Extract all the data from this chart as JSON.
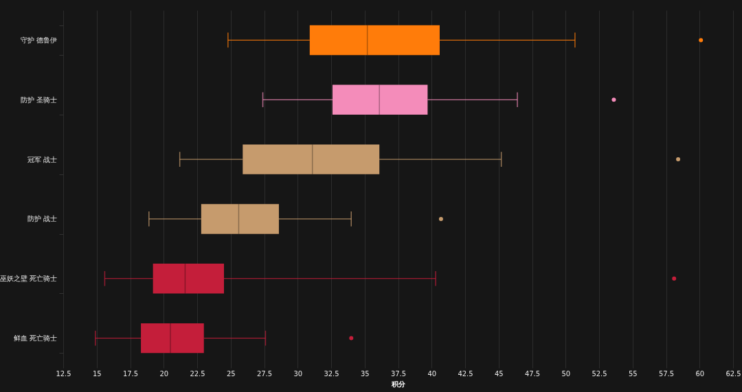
{
  "chart_data": {
    "type": "box",
    "orientation": "horizontal",
    "categories": [
      "守护 德鲁伊",
      "防护 圣骑士",
      "冠军 战士",
      "防护 战士",
      "巫妖之壁 死亡骑士",
      "鲜血 死亡骑士"
    ],
    "colors": [
      "#ff7c0a",
      "#f48cba",
      "#c69b6d",
      "#c69b6d",
      "#c41e3a",
      "#c41e3a"
    ],
    "boxes": [
      {
        "low": 24.8,
        "q1": 30.9,
        "median": 35.2,
        "q3": 40.6,
        "high": 50.7,
        "outliers": [
          60.1
        ]
      },
      {
        "low": 27.4,
        "q1": 32.6,
        "median": 36.1,
        "q3": 39.7,
        "high": 46.4,
        "outliers": [
          53.6
        ]
      },
      {
        "low": 21.2,
        "q1": 25.9,
        "median": 31.1,
        "q3": 36.1,
        "high": 45.2,
        "outliers": [
          58.4
        ]
      },
      {
        "low": 18.9,
        "q1": 22.8,
        "median": 25.6,
        "q3": 28.6,
        "high": 34.0,
        "outliers": [
          40.7
        ]
      },
      {
        "low": 15.6,
        "q1": 19.2,
        "median": 21.6,
        "q3": 24.5,
        "high": 40.3,
        "outliers": [
          58.1
        ]
      },
      {
        "low": 14.9,
        "q1": 18.3,
        "median": 20.5,
        "q3": 23.0,
        "high": 27.6,
        "outliers": [
          34.0
        ]
      }
    ],
    "xlabel": "积分",
    "xlim": [
      12.5,
      62.5
    ],
    "xticks": [
      12.5,
      15,
      17.5,
      20,
      22.5,
      25,
      27.5,
      30,
      32.5,
      35,
      37.5,
      40,
      42.5,
      45,
      47.5,
      50,
      52.5,
      55,
      57.5,
      60,
      62.5
    ],
    "grid": "x",
    "marker": "circle"
  }
}
